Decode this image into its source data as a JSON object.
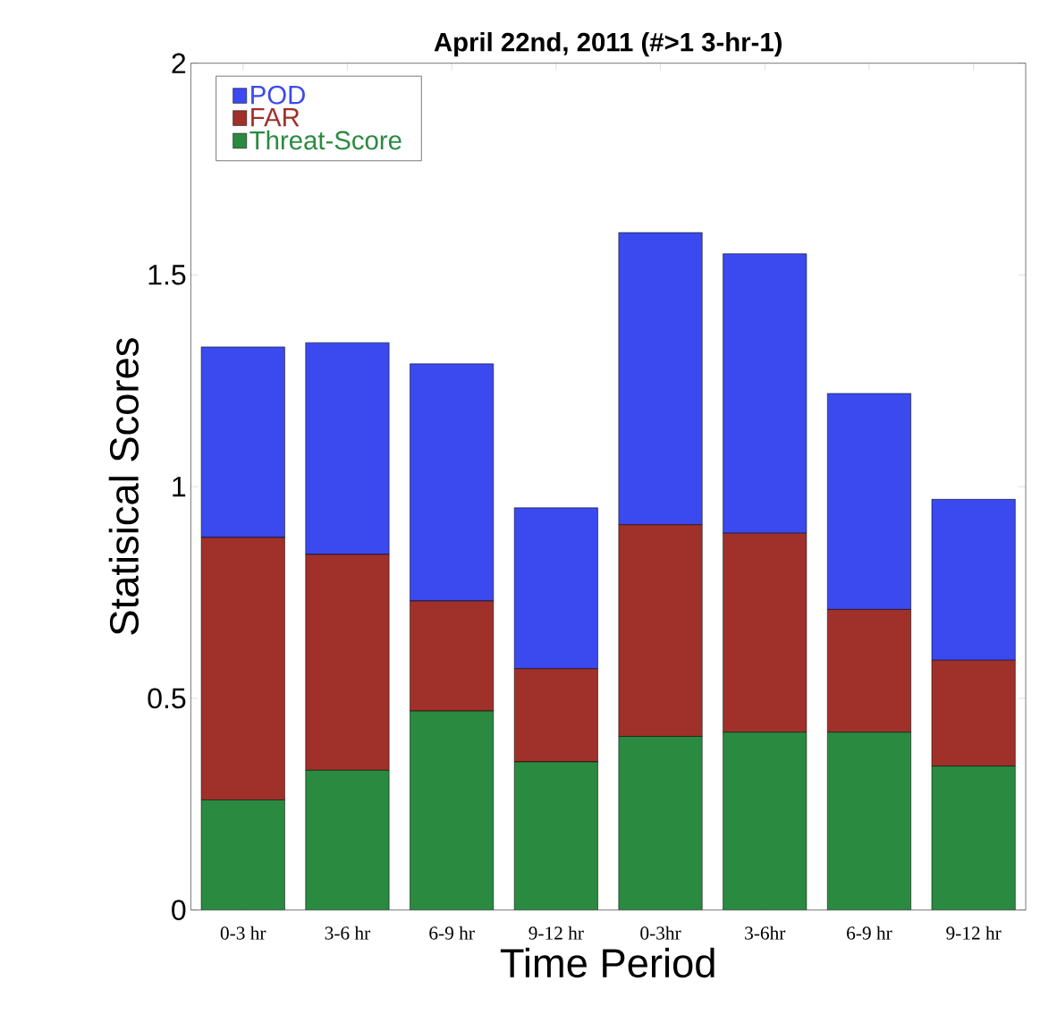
{
  "chart_data": {
    "type": "bar",
    "stacked": true,
    "title": "April 22nd, 2011 (#>1 3-hr-1)",
    "xlabel": "Time Period",
    "ylabel": "Statisical Scores",
    "categories": [
      "0-3 hr",
      "3-6 hr",
      "6-9 hr",
      "9-12 hr",
      "0-3hr",
      "3-6hr",
      "6-9 hr",
      "9-12 hr"
    ],
    "series": [
      {
        "name": "Threat-Score",
        "color": "#2a8a40",
        "values": [
          0.26,
          0.33,
          0.47,
          0.35,
          0.41,
          0.42,
          0.42,
          0.34
        ]
      },
      {
        "name": "FAR",
        "color": "#a0302a",
        "values": [
          0.62,
          0.51,
          0.26,
          0.22,
          0.5,
          0.47,
          0.29,
          0.25
        ]
      },
      {
        "name": "POD",
        "color": "#3a4aee",
        "values": [
          0.45,
          0.5,
          0.56,
          0.38,
          0.69,
          0.66,
          0.51,
          0.38
        ]
      }
    ],
    "ylim": [
      0,
      2
    ],
    "yticks": [
      0,
      0.5,
      1,
      1.5,
      2
    ],
    "legend": "top left",
    "grid": false
  }
}
